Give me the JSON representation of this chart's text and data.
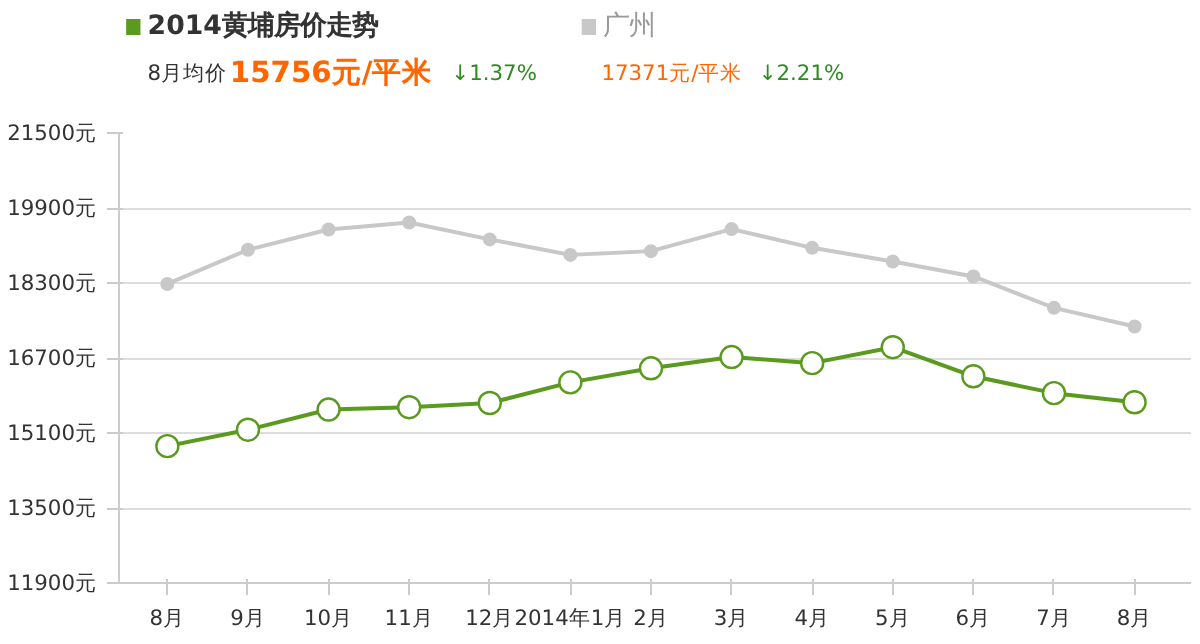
{
  "chart_data": {
    "type": "line",
    "categories": [
      "8月",
      "9月",
      "10月",
      "11月",
      "12月",
      "2014年1月",
      "2月",
      "3月",
      "4月",
      "5月",
      "6月",
      "7月",
      "8月"
    ],
    "series": [
      {
        "name": "2014黄埔房价走势",
        "color": "#5a9a1e",
        "marker": "circle",
        "values": [
          14820,
          15170,
          15600,
          15650,
          15740,
          16180,
          16480,
          16720,
          16590,
          16930,
          16310,
          15950,
          15756
        ]
      },
      {
        "name": "广州",
        "color": "#c8c8c8",
        "marker": "circle",
        "values": [
          18280,
          19010,
          19440,
          19590,
          19230,
          18900,
          18980,
          19450,
          19050,
          18760,
          18440,
          17770,
          17371
        ]
      }
    ],
    "annotations": [
      "8月均价",
      "15756元/平米",
      "↓1.37%",
      "17371元/平米",
      "↓2.21%"
    ],
    "ylim": [
      11900,
      21500
    ],
    "yticks": [
      {
        "value": 11900,
        "label": "11900元"
      },
      {
        "value": 13500,
        "label": "13500元"
      },
      {
        "value": 15100,
        "label": "15100元"
      },
      {
        "value": 16700,
        "label": "16700元"
      },
      {
        "value": 18300,
        "label": "18300元"
      },
      {
        "value": 19900,
        "label": "19900元"
      },
      {
        "value": 21500,
        "label": "21500元"
      }
    ],
    "grid": "y",
    "legend": "top left"
  }
}
